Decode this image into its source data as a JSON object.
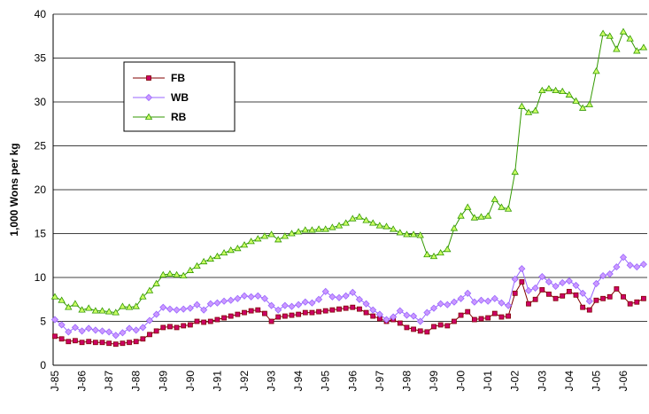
{
  "chart_data": {
    "type": "line",
    "y_label": "1,000 Wons per kg",
    "categories": [
      "J-85",
      null,
      null,
      null,
      "J-86",
      null,
      null,
      null,
      "J-87",
      null,
      null,
      null,
      "J-88",
      null,
      null,
      null,
      "J-89",
      null,
      null,
      null,
      "J-90",
      null,
      null,
      null,
      "J-91",
      null,
      null,
      null,
      "J-92",
      null,
      null,
      null,
      "J-93",
      null,
      null,
      null,
      "J-94",
      null,
      null,
      null,
      "J-95",
      null,
      null,
      null,
      "J-96",
      null,
      null,
      null,
      "J-97",
      null,
      null,
      null,
      "J-98",
      null,
      null,
      null,
      "J-99",
      null,
      null,
      null,
      "J-00",
      null,
      null,
      null,
      "J-01",
      null,
      null,
      null,
      "J-02",
      null,
      null,
      null,
      "J-03",
      null,
      null,
      null,
      "J-04",
      null,
      null,
      null,
      "J-05",
      null,
      null,
      null,
      "J-06",
      null,
      null,
      null
    ],
    "series": [
      {
        "name": "FB",
        "color": "#800000",
        "marker": "square",
        "marker_color": "#cc0066",
        "values": [
          3.3,
          3.0,
          2.7,
          2.8,
          2.6,
          2.7,
          2.6,
          2.6,
          2.5,
          2.4,
          2.5,
          2.6,
          2.7,
          3.0,
          3.5,
          3.9,
          4.3,
          4.4,
          4.3,
          4.5,
          4.6,
          5.0,
          4.9,
          5.0,
          5.2,
          5.4,
          5.6,
          5.8,
          6.0,
          6.2,
          6.3,
          5.9,
          5.0,
          5.5,
          5.6,
          5.7,
          5.8,
          6.0,
          6.0,
          6.1,
          6.2,
          6.3,
          6.4,
          6.5,
          6.6,
          6.4,
          6.0,
          5.6,
          5.3,
          5.0,
          5.2,
          4.8,
          4.3,
          4.1,
          3.9,
          3.8,
          4.4,
          4.6,
          4.5,
          5.0,
          5.7,
          6.1,
          5.2,
          5.3,
          5.4,
          5.9,
          5.5,
          5.6,
          8.2,
          9.5,
          7.0,
          7.5,
          8.6,
          8.1,
          7.6,
          7.9,
          8.4,
          8.0,
          6.6,
          6.3,
          7.4,
          7.6,
          7.8,
          8.7,
          7.8,
          7.0,
          7.2,
          7.6
        ]
      },
      {
        "name": "WB",
        "color": "#9966ff",
        "marker": "diamond",
        "marker_color": "#cc99ff",
        "values": [
          5.2,
          4.6,
          3.8,
          4.3,
          3.9,
          4.2,
          4.0,
          3.9,
          3.8,
          3.4,
          3.7,
          4.2,
          4.0,
          4.3,
          5.1,
          5.8,
          6.6,
          6.4,
          6.3,
          6.4,
          6.5,
          6.9,
          6.3,
          7.0,
          7.1,
          7.3,
          7.4,
          7.6,
          7.9,
          7.8,
          7.9,
          7.6,
          6.8,
          6.3,
          6.8,
          6.7,
          6.9,
          7.2,
          7.1,
          7.5,
          8.4,
          7.8,
          7.7,
          7.9,
          8.3,
          7.5,
          7.0,
          6.3,
          5.8,
          5.2,
          5.5,
          6.2,
          5.7,
          5.6,
          5.0,
          6.0,
          6.5,
          7.0,
          6.9,
          7.2,
          7.6,
          8.2,
          7.2,
          7.4,
          7.3,
          7.6,
          7.1,
          6.8,
          9.8,
          11.0,
          8.5,
          8.8,
          10.1,
          9.5,
          9.0,
          9.4,
          9.6,
          9.1,
          8.2,
          7.3,
          9.3,
          10.2,
          10.4,
          11.2,
          12.3,
          11.4,
          11.2,
          11.5
        ]
      },
      {
        "name": "RB",
        "color": "#339900",
        "marker": "triangle",
        "marker_color": "#ccff66",
        "values": [
          7.8,
          7.4,
          6.6,
          7.0,
          6.3,
          6.5,
          6.2,
          6.2,
          6.1,
          6.0,
          6.7,
          6.6,
          6.7,
          7.8,
          8.5,
          9.3,
          10.3,
          10.4,
          10.3,
          10.2,
          10.8,
          11.3,
          11.8,
          12.1,
          12.4,
          12.8,
          13.1,
          13.3,
          13.7,
          14.1,
          14.4,
          14.7,
          14.9,
          14.3,
          14.7,
          15.0,
          15.2,
          15.4,
          15.4,
          15.5,
          15.5,
          15.7,
          15.9,
          16.2,
          16.7,
          16.9,
          16.5,
          16.2,
          15.9,
          15.8,
          15.5,
          15.1,
          14.9,
          14.9,
          14.8,
          12.6,
          12.4,
          12.8,
          13.2,
          15.6,
          17.0,
          18.0,
          16.8,
          16.9,
          17.0,
          18.9,
          18.0,
          17.8,
          22.0,
          29.5,
          28.8,
          29.0,
          31.3,
          31.5,
          31.3,
          31.2,
          30.8,
          30.1,
          29.3,
          29.7,
          33.5,
          37.8,
          37.5,
          36.0,
          38.0,
          37.2,
          35.8,
          36.2
        ]
      }
    ],
    "ylim": [
      0,
      40
    ],
    "yticks": [
      0,
      5,
      10,
      15,
      20,
      25,
      30,
      35,
      40
    ],
    "grid": true
  }
}
